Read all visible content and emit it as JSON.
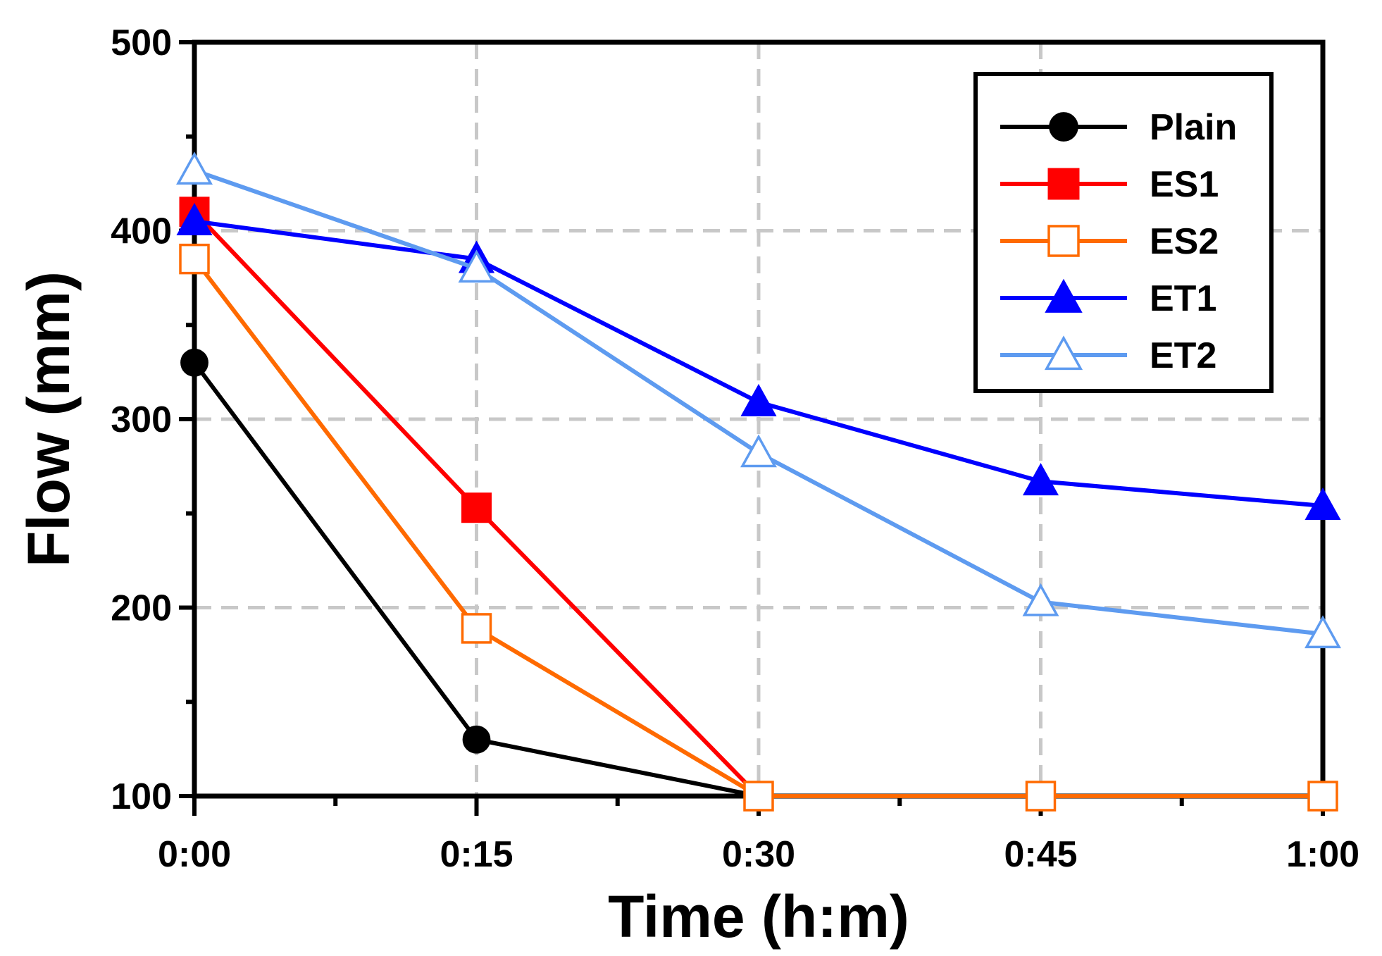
{
  "chart_data": {
    "type": "line",
    "xlabel": "Time (h:m)",
    "ylabel": "Flow (mm)",
    "categories": [
      "0:00",
      "0:15",
      "0:30",
      "0:45",
      "1:00"
    ],
    "ylim": [
      100,
      500
    ],
    "yticks": [
      "100",
      "200",
      "300",
      "400",
      "500"
    ],
    "grid": true,
    "legend_position": "top-right",
    "series": [
      {
        "name": "Plain",
        "color": "#000000",
        "marker": "circle-filled",
        "values": [
          330,
          130,
          100,
          null,
          null
        ]
      },
      {
        "name": "ES1",
        "color": "#ff0000",
        "marker": "square-filled",
        "values": [
          410,
          253,
          100,
          100,
          100
        ]
      },
      {
        "name": "ES2",
        "color": "#ff6a00",
        "marker": "square-open",
        "values": [
          385,
          189,
          100,
          100,
          100
        ]
      },
      {
        "name": "ET1",
        "color": "#0000ff",
        "marker": "triangle-filled",
        "values": [
          405,
          385,
          309,
          267,
          254
        ]
      },
      {
        "name": "ET2",
        "color": "#5e9bf0",
        "marker": "triangle-open",
        "values": [
          432,
          380,
          282,
          203,
          186
        ]
      }
    ]
  }
}
